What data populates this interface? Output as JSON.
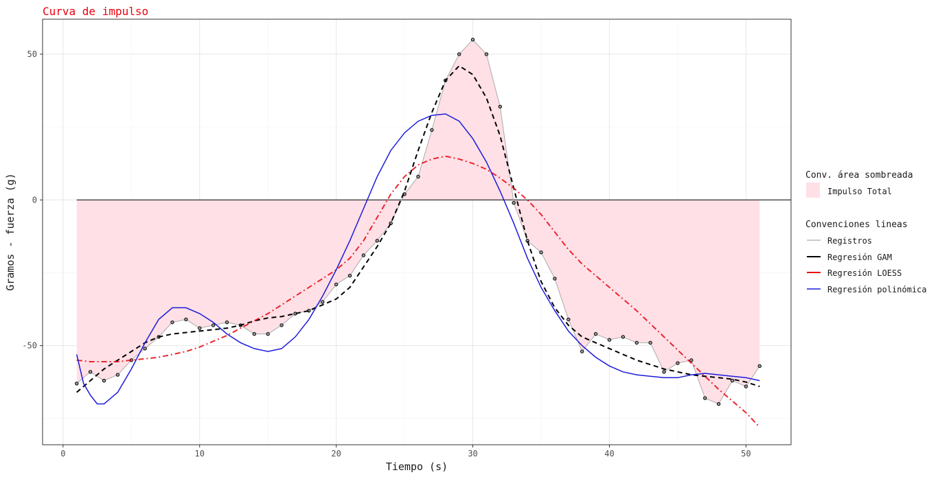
{
  "chart_data": {
    "type": "line",
    "title": "Curva de impulso",
    "xlabel": "Tiempo (s)",
    "ylabel": "Gramos - fuerza (g)",
    "xlim": [
      -1.5,
      53.3
    ],
    "ylim": [
      -84,
      62
    ],
    "x_ticks": [
      0,
      10,
      20,
      30,
      40,
      50
    ],
    "y_ticks": [
      -50,
      0,
      50
    ],
    "grid": true,
    "legend_position": "right",
    "colors": {
      "registros": "#aaaaaa",
      "points": "#000000",
      "gam": "#000000",
      "loess": "#e8000b",
      "poly": "#1a1adb",
      "fill": "#ffe0e6",
      "zero_line": "#000000"
    },
    "legend": {
      "area_title": "Conv. área sombreada",
      "area_label": "Impulso Total",
      "lines_title": "Convenciones lineas",
      "series_labels": [
        "Registros",
        "Regresión GAM",
        "Regresión LOESS",
        "Regresión polinómica"
      ]
    },
    "registros": {
      "x": [
        1,
        2,
        3,
        4,
        5,
        6,
        7,
        8,
        9,
        10,
        11,
        12,
        13,
        14,
        15,
        16,
        17,
        18,
        19,
        20,
        21,
        22,
        23,
        24,
        25,
        26,
        27,
        28,
        29,
        30,
        31,
        32,
        33,
        34,
        35,
        36,
        37,
        38,
        39,
        40,
        41,
        42,
        43,
        44,
        45,
        46,
        47,
        48,
        49,
        50,
        51
      ],
      "y": [
        -63,
        -59,
        -62,
        -60,
        -55,
        -51,
        -47,
        -42,
        -41,
        -44,
        -43,
        -42,
        -43,
        -46,
        -46,
        -43,
        -39,
        -38,
        -35,
        -29,
        -26,
        -19,
        -14,
        -8,
        2,
        8,
        24,
        41,
        50,
        55,
        50,
        32,
        -1,
        -14,
        -18,
        -27,
        -41,
        -52,
        -46,
        -48,
        -47,
        -49,
        -49,
        -59,
        -56,
        -55,
        -68,
        -70,
        -62,
        -64,
        -57
      ]
    },
    "gam": {
      "x": [
        1,
        2,
        3,
        4,
        5,
        6,
        7,
        8,
        9,
        10,
        11,
        12,
        13,
        14,
        15,
        16,
        17,
        18,
        19,
        20,
        21,
        22,
        23,
        24,
        25,
        26,
        27,
        28,
        29,
        30,
        31,
        32,
        33,
        34,
        35,
        36,
        37,
        38,
        39,
        40,
        41,
        42,
        43,
        44,
        45,
        46,
        47,
        48,
        49,
        50,
        51
      ],
      "y": [
        -66,
        -62,
        -58,
        -55,
        -52,
        -49,
        -47,
        -46,
        -45.5,
        -45,
        -44.5,
        -44,
        -43,
        -41.5,
        -40.5,
        -40,
        -39,
        -38,
        -36,
        -34,
        -30,
        -23,
        -16,
        -8,
        3,
        17,
        30,
        41,
        46,
        43,
        35,
        22,
        4,
        -14,
        -28,
        -37,
        -43,
        -47,
        -49,
        -51,
        -53,
        -55,
        -56.5,
        -58,
        -59,
        -60,
        -60.5,
        -61,
        -61.5,
        -62.5,
        -64
      ]
    },
    "loess": {
      "x": [
        1,
        2,
        3,
        4,
        5,
        6,
        7,
        8,
        9,
        10,
        11,
        12,
        13,
        14,
        15,
        16,
        17,
        18,
        19,
        20,
        21,
        22,
        23,
        24,
        25,
        26,
        27,
        28,
        29,
        30,
        31,
        32,
        33,
        34,
        35,
        36,
        37,
        38,
        39,
        40,
        41,
        42,
        43,
        44,
        45,
        46,
        47,
        48,
        49,
        50,
        51
      ],
      "y": [
        -55,
        -55.5,
        -55.5,
        -55.5,
        -55,
        -54.5,
        -54,
        -53,
        -52,
        -50.5,
        -48.5,
        -46.5,
        -44,
        -41.5,
        -39,
        -36,
        -33,
        -30,
        -27,
        -24,
        -20,
        -14,
        -6,
        2,
        8,
        12,
        14,
        15,
        14,
        12.5,
        10.5,
        7.5,
        4,
        0,
        -5,
        -11,
        -17,
        -22,
        -26,
        -30,
        -34,
        -38,
        -42.5,
        -47,
        -51.5,
        -56,
        -60.5,
        -65,
        -69,
        -73,
        -78
      ]
    },
    "poly": {
      "x": [
        1,
        1.5,
        2,
        2.5,
        3,
        3.5,
        4,
        5,
        6,
        7,
        8,
        9,
        10,
        11,
        12,
        13,
        14,
        15,
        16,
        17,
        18,
        19,
        20,
        21,
        22,
        23,
        24,
        25,
        26,
        27,
        28,
        29,
        30,
        31,
        32,
        33,
        34,
        35,
        36,
        37,
        38,
        39,
        40,
        41,
        42,
        43,
        44,
        45,
        46,
        47,
        48,
        49,
        50,
        51
      ],
      "y": [
        -53,
        -63,
        -67,
        -70,
        -70,
        -68,
        -66,
        -58,
        -49,
        -41,
        -37,
        -37,
        -39,
        -42,
        -46,
        -49,
        -51,
        -52,
        -51,
        -47,
        -41,
        -33,
        -24,
        -14,
        -3,
        8,
        17,
        23,
        27,
        29,
        29.5,
        27,
        21,
        13,
        3,
        -8,
        -20,
        -30,
        -38,
        -45,
        -50,
        -54,
        -57,
        -59,
        -60,
        -60.5,
        -61,
        -61,
        -60,
        -59.5,
        -60,
        -60.5,
        -61,
        -62
      ]
    }
  }
}
